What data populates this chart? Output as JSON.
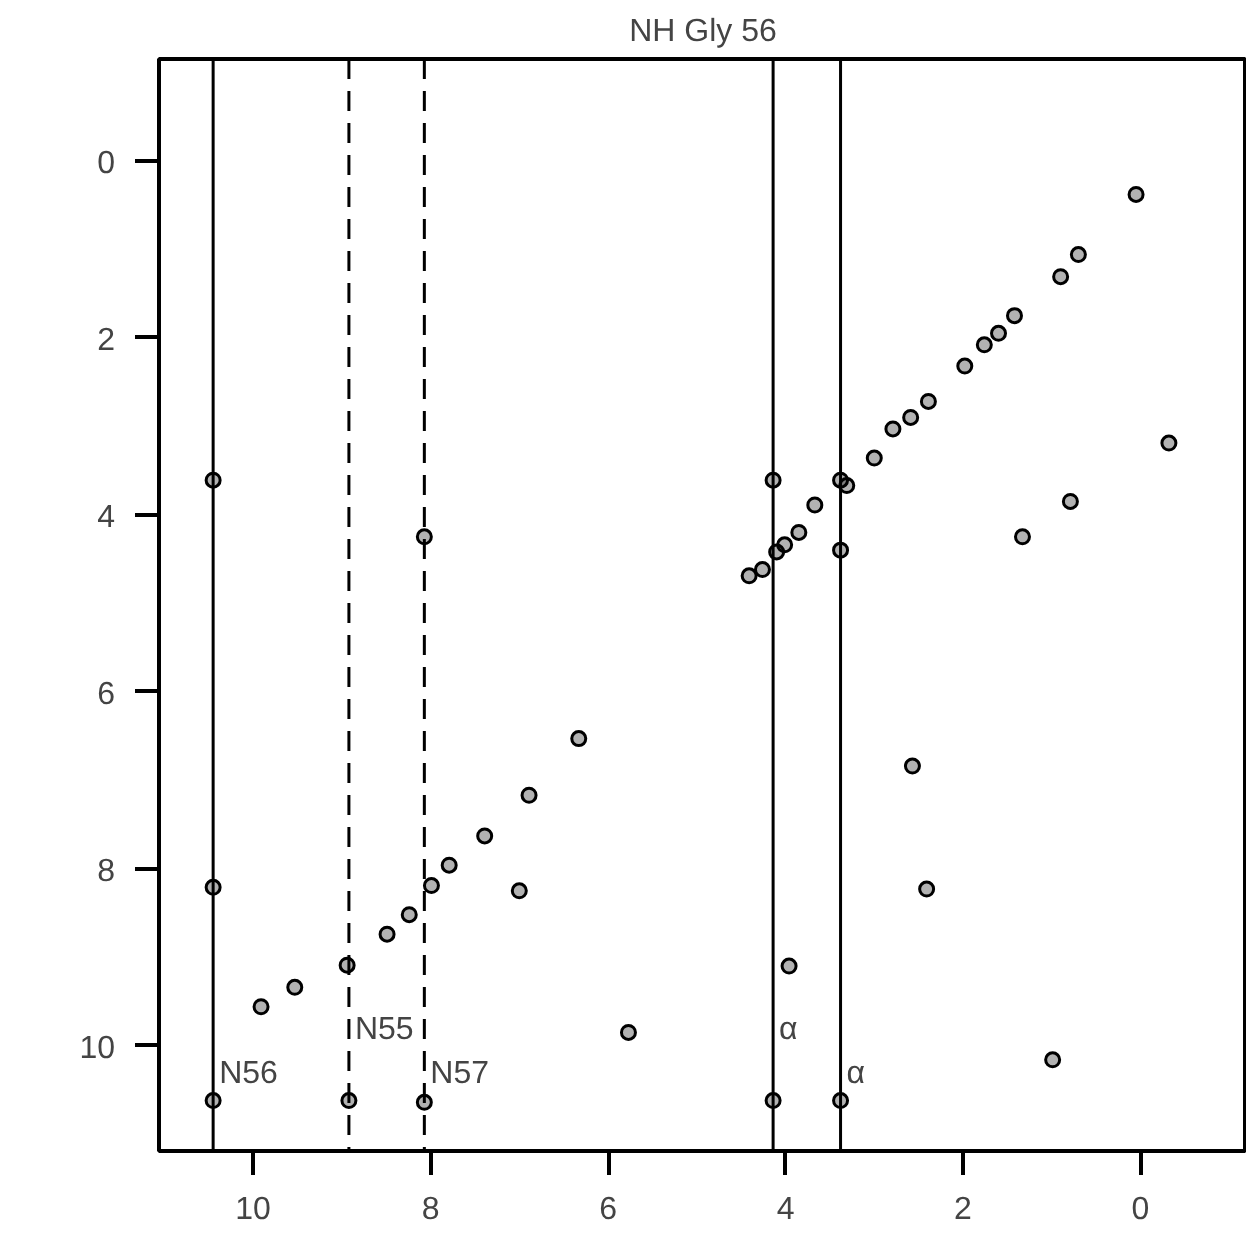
{
  "chart_data": {
    "type": "scatter",
    "title": "NH Gly 56",
    "marker": "circle",
    "grid": false,
    "xlim": [
      11.06,
      -1.2
    ],
    "ylim": [
      11.19,
      -1.15
    ],
    "xticks": [
      10,
      8,
      6,
      4,
      2,
      0
    ],
    "yticks": [
      0,
      2,
      4,
      6,
      8,
      10
    ],
    "series": [
      {
        "color": "#000000",
        "x": [
          0.05,
          0.7,
          0.9,
          1.42,
          1.6,
          1.76,
          1.98,
          2.39,
          2.59,
          2.79,
          3.0,
          3.31,
          3.67,
          3.85,
          4.01,
          4.1,
          4.26,
          4.41,
          6.33,
          6.89,
          7.39,
          7.79,
          7.99,
          8.24,
          8.49,
          8.94,
          9.53,
          9.91,
          10.45,
          10.45,
          10.45,
          8.92,
          8.07,
          8.07,
          4.14,
          4.14,
          3.96,
          3.38,
          3.38,
          3.38,
          0.79,
          1.33,
          -0.32,
          2.57,
          2.41,
          0.99,
          5.77,
          7.0
        ],
        "values": [
          0.38,
          1.06,
          1.31,
          1.75,
          1.95,
          2.08,
          2.32,
          2.72,
          2.9,
          3.03,
          3.36,
          3.67,
          3.89,
          4.2,
          4.34,
          4.42,
          4.62,
          4.69,
          6.53,
          7.17,
          7.63,
          7.96,
          8.19,
          8.52,
          8.74,
          9.09,
          9.34,
          9.56,
          3.61,
          8.21,
          10.62,
          10.62,
          10.64,
          4.25,
          3.61,
          10.62,
          9.1,
          3.61,
          4.4,
          10.62,
          3.85,
          4.25,
          3.19,
          6.84,
          8.23,
          10.16,
          9.85,
          8.25
        ]
      }
    ],
    "ref_lines": [
      {
        "axis": "x",
        "value": 10.45,
        "label": "N56",
        "color": "#000000",
        "line_style": "solid"
      },
      {
        "axis": "x",
        "value": 8.92,
        "label": "N55",
        "color": "#000000",
        "line_style": "dashed"
      },
      {
        "axis": "x",
        "value": 8.07,
        "label": "N57",
        "color": "#000000",
        "line_style": "dashed"
      },
      {
        "axis": "x",
        "value": 4.14,
        "label": "α",
        "color": "#000000",
        "line_style": "solid"
      },
      {
        "axis": "x",
        "value": 3.38,
        "label": "α",
        "color": "#000000",
        "line_style": "solid"
      }
    ]
  }
}
